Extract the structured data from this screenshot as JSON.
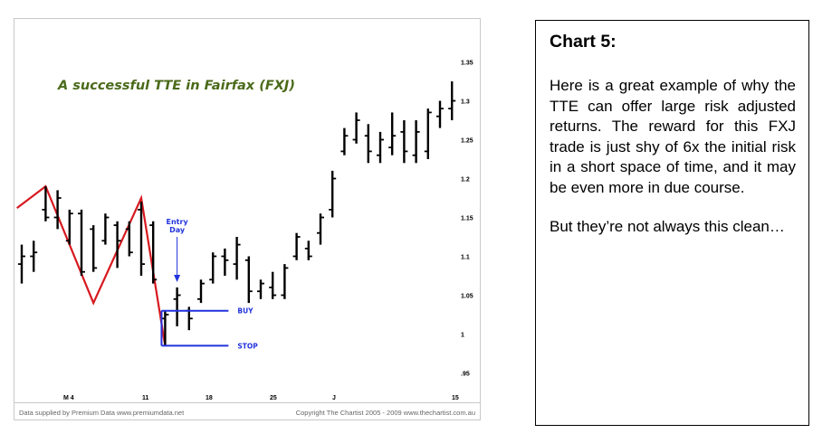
{
  "chart_data": {
    "type": "ohlc",
    "title": "A successful TTE in Fairfax (FXJ)",
    "title_color": "#4a6a1a",
    "ylim": [
      0.93,
      1.36
    ],
    "y_ticks": [
      {
        "value": 1.35,
        "label": "1.35"
      },
      {
        "value": 1.3,
        "label": "1.3"
      },
      {
        "value": 1.25,
        "label": "1.25"
      },
      {
        "value": 1.2,
        "label": "1.2"
      },
      {
        "value": 1.15,
        "label": "1.15"
      },
      {
        "value": 1.1,
        "label": "1.1"
      },
      {
        "value": 1.05,
        "label": "1.05"
      },
      {
        "value": 1.0,
        "label": "1"
      },
      {
        "value": 0.95,
        "label": ".95"
      }
    ],
    "x_ticks": [
      "M 4",
      "11",
      "18",
      "25",
      "J",
      "15"
    ],
    "bars": [
      {
        "h": 1.115,
        "l": 1.065,
        "o": 1.09,
        "c": 1.1
      },
      {
        "h": 1.12,
        "l": 1.08,
        "o": 1.1,
        "c": 1.105
      },
      {
        "h": 1.19,
        "l": 1.145,
        "o": 1.16,
        "c": 1.15
      },
      {
        "h": 1.185,
        "l": 1.135,
        "o": 1.15,
        "c": 1.175
      },
      {
        "h": 1.16,
        "l": 1.115,
        "o": 1.12,
        "c": 1.155
      },
      {
        "h": 1.16,
        "l": 1.075,
        "o": 1.155,
        "c": 1.08
      },
      {
        "h": 1.14,
        "l": 1.08,
        "o": 1.135,
        "c": 1.085
      },
      {
        "h": 1.155,
        "l": 1.115,
        "o": 1.12,
        "c": 1.15
      },
      {
        "h": 1.145,
        "l": 1.085,
        "o": 1.14,
        "c": 1.12
      },
      {
        "h": 1.145,
        "l": 1.1,
        "o": 1.135,
        "c": 1.105
      },
      {
        "h": 1.17,
        "l": 1.075,
        "o": 1.16,
        "c": 1.09
      },
      {
        "h": 1.145,
        "l": 1.065,
        "o": 1.14,
        "c": 1.07
      },
      {
        "h": 1.03,
        "l": 0.985,
        "o": 1.02,
        "c": 1.025
      },
      {
        "h": 1.06,
        "l": 1.01,
        "o": 1.045,
        "c": 1.05
      },
      {
        "h": 1.035,
        "l": 1.005,
        "o": 1.03,
        "c": 1.02
      },
      {
        "h": 1.07,
        "l": 1.04,
        "o": 1.045,
        "c": 1.065
      },
      {
        "h": 1.105,
        "l": 1.065,
        "o": 1.07,
        "c": 1.1
      },
      {
        "h": 1.11,
        "l": 1.075,
        "o": 1.1,
        "c": 1.095
      },
      {
        "h": 1.125,
        "l": 1.07,
        "o": 1.09,
        "c": 1.115
      },
      {
        "h": 1.1,
        "l": 1.04,
        "o": 1.095,
        "c": 1.055
      },
      {
        "h": 1.07,
        "l": 1.045,
        "o": 1.055,
        "c": 1.065
      },
      {
        "h": 1.08,
        "l": 1.045,
        "o": 1.06,
        "c": 1.05
      },
      {
        "h": 1.09,
        "l": 1.045,
        "o": 1.05,
        "c": 1.085
      },
      {
        "h": 1.13,
        "l": 1.095,
        "o": 1.1,
        "c": 1.125
      },
      {
        "h": 1.12,
        "l": 1.095,
        "o": 1.11,
        "c": 1.1
      },
      {
        "h": 1.155,
        "l": 1.115,
        "o": 1.13,
        "c": 1.15
      },
      {
        "h": 1.21,
        "l": 1.15,
        "o": 1.16,
        "c": 1.2
      },
      {
        "h": 1.265,
        "l": 1.23,
        "o": 1.235,
        "c": 1.255
      },
      {
        "h": 1.285,
        "l": 1.245,
        "o": 1.25,
        "c": 1.275
      },
      {
        "h": 1.27,
        "l": 1.22,
        "o": 1.255,
        "c": 1.235
      },
      {
        "h": 1.26,
        "l": 1.22,
        "o": 1.23,
        "c": 1.25
      },
      {
        "h": 1.285,
        "l": 1.23,
        "o": 1.24,
        "c": 1.255
      },
      {
        "h": 1.275,
        "l": 1.22,
        "o": 1.26,
        "c": 1.235
      },
      {
        "h": 1.275,
        "l": 1.22,
        "o": 1.23,
        "c": 1.26
      },
      {
        "h": 1.29,
        "l": 1.225,
        "o": 1.235,
        "c": 1.285
      },
      {
        "h": 1.3,
        "l": 1.265,
        "o": 1.28,
        "c": 1.29
      },
      {
        "h": 1.325,
        "l": 1.275,
        "o": 1.29,
        "c": 1.3
      }
    ],
    "zigzag": {
      "color": "#d71920",
      "points": [
        {
          "bar": -0.4,
          "y": 1.162
        },
        {
          "bar": 2,
          "y": 1.19
        },
        {
          "bar": 6,
          "y": 1.04
        },
        {
          "bar": 10,
          "y": 1.175
        },
        {
          "bar": 12,
          "y": 0.985
        }
      ]
    },
    "entry_annotation": {
      "label_line1": "Entry",
      "label_line2": "Day",
      "color": "#2233dd",
      "bar": 13
    },
    "levels": [
      {
        "name": "BUY",
        "value": 1.03,
        "color": "#2233dd"
      },
      {
        "name": "STOP",
        "value": 0.985,
        "color": "#2233dd"
      }
    ],
    "footer_left": "Data supplied by Premium Data www.premiumdata.net",
    "footer_right": "Copyright The Chartist 2005 - 2009  www.thechartist.com.au"
  },
  "text_box": {
    "title": "Chart 5:",
    "paragraph1": "Here is a great example of why the TTE can offer large risk adjusted returns. The reward for this FXJ trade is just shy of 6x the initial risk in a short space of time, and it may be even more in due course.",
    "paragraph2": "But they’re not always this clean…"
  }
}
